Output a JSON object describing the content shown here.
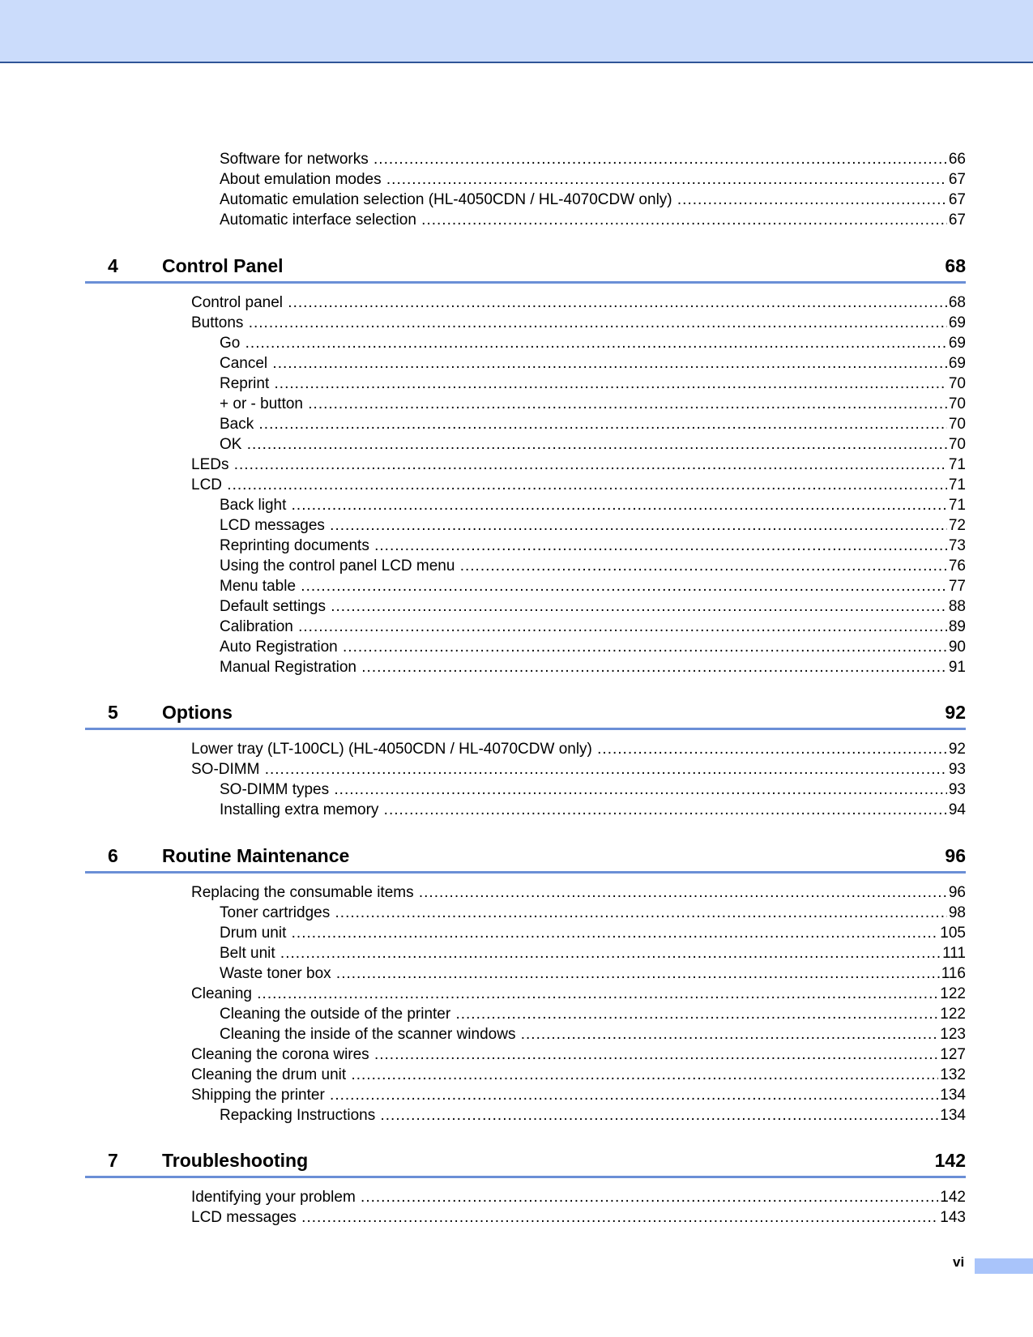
{
  "header": {
    "band_color": "#cbdcfb",
    "line_color": "#2f5597"
  },
  "accent_rule_color": "#6b8fd6",
  "sections": [
    {
      "number": null,
      "title": null,
      "page": null,
      "entries": [
        {
          "level": 2,
          "title": "Software for networks",
          "page": "66"
        },
        {
          "level": 2,
          "title": "About emulation modes",
          "page": "67"
        },
        {
          "level": 2,
          "title": "Automatic emulation selection (HL-4050CDN / HL-4070CDW only)",
          "page": "67"
        },
        {
          "level": 2,
          "title": "Automatic interface selection",
          "page": "67"
        }
      ]
    },
    {
      "number": "4",
      "title": "Control Panel",
      "page": "68",
      "entries": [
        {
          "level": 1,
          "title": "Control panel",
          "page": "68"
        },
        {
          "level": 1,
          "title": "Buttons",
          "page": "69"
        },
        {
          "level": 2,
          "title": "Go",
          "page": "69"
        },
        {
          "level": 2,
          "title": "Cancel",
          "page": "69"
        },
        {
          "level": 2,
          "title": "Reprint",
          "page": "70"
        },
        {
          "level": 2,
          "title": "+ or - button",
          "page": "70"
        },
        {
          "level": 2,
          "title": "Back",
          "page": "70"
        },
        {
          "level": 2,
          "title": "OK",
          "page": "70"
        },
        {
          "level": 1,
          "title": "LEDs",
          "page": "71"
        },
        {
          "level": 1,
          "title": "LCD",
          "page": "71"
        },
        {
          "level": 2,
          "title": "Back light",
          "page": "71"
        },
        {
          "level": 2,
          "title": "LCD messages",
          "page": "72"
        },
        {
          "level": 2,
          "title": "Reprinting documents",
          "page": "73"
        },
        {
          "level": 2,
          "title": "Using the control panel LCD menu",
          "page": "76"
        },
        {
          "level": 2,
          "title": "Menu table",
          "page": "77"
        },
        {
          "level": 2,
          "title": "Default settings",
          "page": "88"
        },
        {
          "level": 2,
          "title": "Calibration",
          "page": "89"
        },
        {
          "level": 2,
          "title": "Auto Registration",
          "page": "90"
        },
        {
          "level": 2,
          "title": "Manual Registration",
          "page": "91"
        }
      ]
    },
    {
      "number": "5",
      "title": "Options",
      "page": "92",
      "entries": [
        {
          "level": 1,
          "title": "Lower tray (LT-100CL) (HL-4050CDN / HL-4070CDW only)",
          "page": "92"
        },
        {
          "level": 1,
          "title": "SO-DIMM",
          "page": "93"
        },
        {
          "level": 2,
          "title": "SO-DIMM types",
          "page": "93"
        },
        {
          "level": 2,
          "title": "Installing extra memory",
          "page": "94"
        }
      ]
    },
    {
      "number": "6",
      "title": "Routine Maintenance",
      "page": "96",
      "entries": [
        {
          "level": 1,
          "title": "Replacing the consumable items",
          "page": "96"
        },
        {
          "level": 2,
          "title": "Toner cartridges",
          "page": "98"
        },
        {
          "level": 2,
          "title": "Drum unit",
          "page": "105"
        },
        {
          "level": 2,
          "title": "Belt unit",
          "page": "111"
        },
        {
          "level": 2,
          "title": "Waste toner box",
          "page": "116"
        },
        {
          "level": 1,
          "title": "Cleaning",
          "page": "122"
        },
        {
          "level": 2,
          "title": "Cleaning the outside of the printer",
          "page": "122"
        },
        {
          "level": 2,
          "title": "Cleaning the inside of the scanner windows",
          "page": "123"
        },
        {
          "level": 1,
          "title": "Cleaning the corona wires",
          "page": "127"
        },
        {
          "level": 1,
          "title": "Cleaning the drum unit",
          "page": "132"
        },
        {
          "level": 1,
          "title": "Shipping the printer",
          "page": "134"
        },
        {
          "level": 2,
          "title": "Repacking Instructions",
          "page": "134"
        }
      ]
    },
    {
      "number": "7",
      "title": "Troubleshooting",
      "page": "142",
      "entries": [
        {
          "level": 1,
          "title": "Identifying your problem",
          "page": "142"
        },
        {
          "level": 1,
          "title": "LCD messages",
          "page": "143"
        }
      ]
    }
  ],
  "footer": {
    "page_number": "vi",
    "tab_color": "#a9c4fa"
  }
}
